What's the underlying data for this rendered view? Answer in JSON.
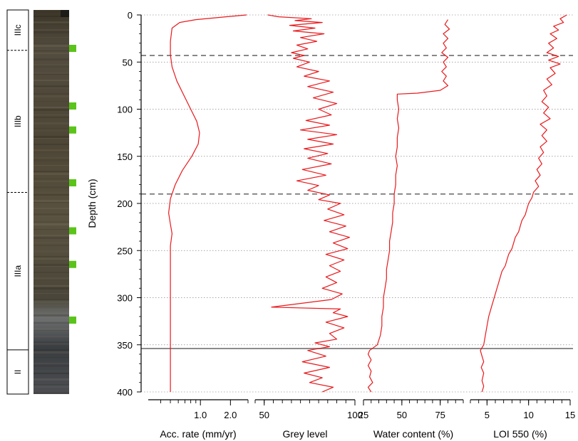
{
  "chart_data": {
    "type": "line",
    "y_axis": {
      "label": "Depth (cm)",
      "range": [
        0,
        400
      ],
      "inverted": true,
      "ticks": [
        0,
        50,
        100,
        150,
        200,
        250,
        300,
        350,
        400
      ]
    },
    "units": [
      {
        "label": "IIIc",
        "top": 0,
        "bottom": 42
      },
      {
        "label": "IIIb",
        "top": 42,
        "bottom": 190
      },
      {
        "label": "IIIa",
        "top": 190,
        "bottom": 354
      },
      {
        "label": "II",
        "top": 354,
        "bottom": 400
      }
    ],
    "sample_markers_depth": [
      40,
      100,
      125,
      180,
      230,
      265,
      323
    ],
    "horizontal_lines": [
      {
        "depth": 43,
        "style": "dashed"
      },
      {
        "depth": 190,
        "style": "dashed"
      },
      {
        "depth": 354,
        "style": "solid"
      }
    ],
    "grid": "dotted horizontal at each depth tick",
    "line_color": "#e8191c",
    "marker_color": "#5ac419",
    "panels": [
      {
        "name": "acc_rate",
        "xlabel": "Acc. rate (mm/yr)",
        "scale": "log",
        "xlim": [
          0.3,
          3.0
        ],
        "tick_labels": [
          "1.0",
          "2.0"
        ],
        "tick_values": [
          1.0,
          2.0
        ],
        "minor_ticks": [
          0.4,
          0.5,
          0.6,
          0.7,
          0.8,
          0.9,
          3.0
        ],
        "points": [
          [
            2.9,
            0
          ],
          [
            1.8,
            2
          ],
          [
            0.9,
            5
          ],
          [
            0.62,
            8
          ],
          [
            0.52,
            14
          ],
          [
            0.5,
            28
          ],
          [
            0.5,
            42
          ],
          [
            0.52,
            55
          ],
          [
            0.58,
            70
          ],
          [
            0.68,
            85
          ],
          [
            0.8,
            100
          ],
          [
            0.92,
            113
          ],
          [
            0.98,
            125
          ],
          [
            0.95,
            137
          ],
          [
            0.82,
            150
          ],
          [
            0.66,
            165
          ],
          [
            0.56,
            180
          ],
          [
            0.5,
            195
          ],
          [
            0.48,
            210
          ],
          [
            0.5,
            222
          ],
          [
            0.52,
            232
          ],
          [
            0.5,
            245
          ],
          [
            0.5,
            260
          ],
          [
            0.5,
            300
          ],
          [
            0.5,
            350
          ],
          [
            0.5,
            400
          ]
        ]
      },
      {
        "name": "grey_level",
        "xlabel": "Grey level",
        "scale": "linear",
        "xlim": [
          45,
          100
        ],
        "tick_labels": [
          "50",
          "100"
        ],
        "tick_values": [
          50,
          100
        ],
        "minor_tick_step": 5,
        "points": [
          [
            52,
            0
          ],
          [
            58,
            2
          ],
          [
            76,
            4
          ],
          [
            67,
            6
          ],
          [
            82,
            8
          ],
          [
            64,
            11
          ],
          [
            78,
            14
          ],
          [
            66,
            17
          ],
          [
            83,
            20
          ],
          [
            70,
            24
          ],
          [
            79,
            28
          ],
          [
            68,
            32
          ],
          [
            74,
            36
          ],
          [
            65,
            40
          ],
          [
            72,
            43
          ],
          [
            66,
            46
          ],
          [
            75,
            50
          ],
          [
            68,
            55
          ],
          [
            80,
            60
          ],
          [
            72,
            65
          ],
          [
            86,
            70
          ],
          [
            74,
            76
          ],
          [
            88,
            82
          ],
          [
            77,
            88
          ],
          [
            90,
            94
          ],
          [
            80,
            100
          ],
          [
            87,
            106
          ],
          [
            73,
            112
          ],
          [
            86,
            117
          ],
          [
            70,
            122
          ],
          [
            90,
            127
          ],
          [
            74,
            132
          ],
          [
            88,
            137
          ],
          [
            72,
            142
          ],
          [
            85,
            147
          ],
          [
            74,
            152
          ],
          [
            87,
            158
          ],
          [
            71,
            164
          ],
          [
            84,
            170
          ],
          [
            68,
            176
          ],
          [
            80,
            181
          ],
          [
            74,
            186
          ],
          [
            86,
            191
          ],
          [
            80,
            196
          ],
          [
            92,
            200
          ],
          [
            85,
            206
          ],
          [
            94,
            212
          ],
          [
            83,
            218
          ],
          [
            95,
            224
          ],
          [
            86,
            230
          ],
          [
            97,
            236
          ],
          [
            88,
            242
          ],
          [
            96,
            248
          ],
          [
            84,
            254
          ],
          [
            94,
            260
          ],
          [
            86,
            266
          ],
          [
            92,
            272
          ],
          [
            84,
            278
          ],
          [
            90,
            284
          ],
          [
            82,
            290
          ],
          [
            93,
            296
          ],
          [
            87,
            302
          ],
          [
            54,
            310
          ],
          [
            92,
            312
          ],
          [
            88,
            316
          ],
          [
            96,
            320
          ],
          [
            84,
            326
          ],
          [
            94,
            332
          ],
          [
            86,
            338
          ],
          [
            90,
            344
          ],
          [
            78,
            348
          ],
          [
            86,
            352
          ],
          [
            74,
            356
          ],
          [
            84,
            362
          ],
          [
            71,
            368
          ],
          [
            86,
            374
          ],
          [
            72,
            380
          ],
          [
            82,
            385
          ],
          [
            75,
            390
          ],
          [
            88,
            395
          ],
          [
            82,
            400
          ]
        ]
      },
      {
        "name": "water_content",
        "xlabel": "Water content (%)",
        "scale": "linear",
        "xlim": [
          25,
          90
        ],
        "tick_labels": [
          "25",
          "50",
          "75"
        ],
        "tick_values": [
          25,
          50,
          75
        ],
        "minor_tick_step": 5,
        "points": [
          [
            80,
            5
          ],
          [
            78,
            10
          ],
          [
            81,
            15
          ],
          [
            77,
            20
          ],
          [
            80,
            25
          ],
          [
            77,
            30
          ],
          [
            79,
            35
          ],
          [
            76,
            40
          ],
          [
            80,
            45
          ],
          [
            77,
            50
          ],
          [
            79,
            55
          ],
          [
            76,
            60
          ],
          [
            79,
            65
          ],
          [
            77,
            70
          ],
          [
            80,
            75
          ],
          [
            75,
            80
          ],
          [
            60,
            83
          ],
          [
            47,
            84
          ],
          [
            47,
            90
          ],
          [
            48,
            100
          ],
          [
            47,
            110
          ],
          [
            48,
            120
          ],
          [
            47,
            130
          ],
          [
            47,
            140
          ],
          [
            46,
            150
          ],
          [
            47,
            160
          ],
          [
            46,
            170
          ],
          [
            46,
            180
          ],
          [
            45,
            190
          ],
          [
            45,
            200
          ],
          [
            44,
            210
          ],
          [
            44,
            220
          ],
          [
            43,
            230
          ],
          [
            42,
            240
          ],
          [
            42,
            250
          ],
          [
            41,
            260
          ],
          [
            40,
            270
          ],
          [
            40,
            280
          ],
          [
            39,
            290
          ],
          [
            38,
            300
          ],
          [
            38,
            310
          ],
          [
            37,
            320
          ],
          [
            37,
            330
          ],
          [
            36,
            340
          ],
          [
            34,
            350
          ],
          [
            29,
            356
          ],
          [
            28,
            360
          ],
          [
            30,
            366
          ],
          [
            28,
            372
          ],
          [
            30,
            378
          ],
          [
            29,
            384
          ],
          [
            31,
            390
          ],
          [
            28,
            395
          ],
          [
            30,
            400
          ]
        ]
      },
      {
        "name": "loi_550",
        "xlabel": "LOI 550 (%)",
        "scale": "linear",
        "xlim": [
          3,
          15
        ],
        "tick_labels": [
          "5",
          "10",
          "15"
        ],
        "tick_values": [
          5,
          10,
          15
        ],
        "minor_tick_step": 1,
        "points": [
          [
            14.6,
            0
          ],
          [
            13.8,
            4
          ],
          [
            14.2,
            8
          ],
          [
            13.0,
            12
          ],
          [
            13.6,
            16
          ],
          [
            12.6,
            20
          ],
          [
            13.4,
            25
          ],
          [
            12.4,
            30
          ],
          [
            13.0,
            35
          ],
          [
            12.2,
            40
          ],
          [
            13.6,
            44
          ],
          [
            12.4,
            48
          ],
          [
            13.8,
            52
          ],
          [
            12.6,
            56
          ],
          [
            13.2,
            62
          ],
          [
            12.2,
            68
          ],
          [
            12.8,
            74
          ],
          [
            11.8,
            80
          ],
          [
            12.2,
            86
          ],
          [
            11.6,
            92
          ],
          [
            12.4,
            98
          ],
          [
            11.8,
            104
          ],
          [
            12.6,
            110
          ],
          [
            11.4,
            116
          ],
          [
            12.2,
            122
          ],
          [
            11.6,
            128
          ],
          [
            12.2,
            134
          ],
          [
            11.4,
            140
          ],
          [
            11.8,
            146
          ],
          [
            11.2,
            152
          ],
          [
            11.6,
            158
          ],
          [
            11.0,
            164
          ],
          [
            11.4,
            170
          ],
          [
            10.8,
            176
          ],
          [
            11.2,
            182
          ],
          [
            10.6,
            188
          ],
          [
            10.4,
            194
          ],
          [
            10.0,
            200
          ],
          [
            9.8,
            206
          ],
          [
            9.6,
            212
          ],
          [
            9.2,
            218
          ],
          [
            9.0,
            224
          ],
          [
            8.8,
            230
          ],
          [
            8.4,
            236
          ],
          [
            8.2,
            242
          ],
          [
            8.0,
            248
          ],
          [
            7.6,
            254
          ],
          [
            7.4,
            260
          ],
          [
            7.2,
            266
          ],
          [
            6.8,
            272
          ],
          [
            6.6,
            278
          ],
          [
            6.4,
            284
          ],
          [
            6.2,
            290
          ],
          [
            6.0,
            296
          ],
          [
            5.8,
            302
          ],
          [
            5.6,
            308
          ],
          [
            5.4,
            314
          ],
          [
            5.2,
            320
          ],
          [
            5.0,
            330
          ],
          [
            4.8,
            340
          ],
          [
            4.6,
            350
          ],
          [
            4.2,
            356
          ],
          [
            4.4,
            362
          ],
          [
            4.6,
            368
          ],
          [
            4.3,
            374
          ],
          [
            4.6,
            380
          ],
          [
            4.4,
            388
          ],
          [
            4.6,
            394
          ],
          [
            4.4,
            400
          ]
        ]
      }
    ]
  }
}
